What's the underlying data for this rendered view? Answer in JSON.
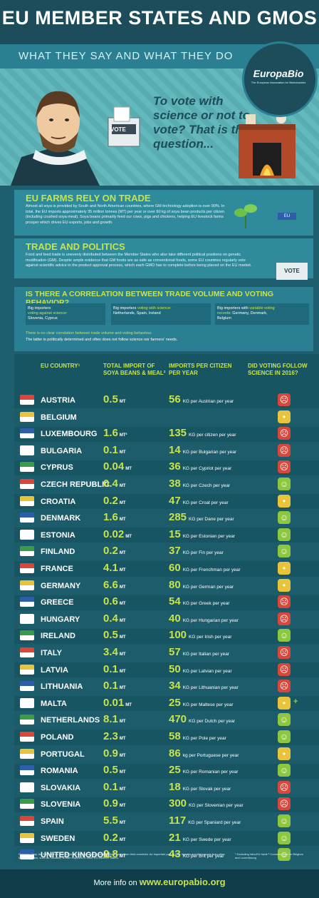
{
  "header": {
    "title": "EU MEMBER STATES AND GMOS",
    "subtitle": "WHAT THEY SAY AND WHAT THEY DO"
  },
  "logo": {
    "name": "EuropaBio",
    "tagline": "The European Association for Bioindustries"
  },
  "hero": {
    "quote": "To vote with science or not to vote? That is the question...",
    "vote_label": "VOTE"
  },
  "section_trade": {
    "heading": "EU FARMS RELY ON TRADE",
    "text": "Almost all soya is provided by South and North American countries, where GM technology adoption is over 90%. In total, the EU imports approximately 35 million tonnes (MT) per year or over 60 kg of soya bean products per citizen (including crushed soya meal). Soya beans primarily feed our cows, pigs and chickens, helping EU livestock farms prosper which drives EU exports, jobs and growth.",
    "sign": "EU"
  },
  "section_politics": {
    "heading": "TRADE AND POLITICS",
    "text": "Food and feed trade is unevenly distributed between the Member States who also take different political positions on genetic modification (GM). Despite ample evidence that GM foods are as safe as conventional foods, some EU countries regularly vote against scientific advice in the product approval process, which each GMO has to complete before being placed on the EU market.",
    "vote_label": "VOTE"
  },
  "section_correlation": {
    "heading": "IS THERE A CORRELATION BETWEEN TRADE VOLUME AND VOTING BEHAVIOR?",
    "box1_pre": "Big importers",
    "box1_hl": "voting against science:",
    "box1_countries": "Slovenia, Cyprus",
    "box2_pre": "Big importers",
    "box2_hl": "voting with science:",
    "box2_countries": "Netherlands, Spain, Ireland",
    "box3_pre": "Big importers with",
    "box3_hl": "variable voting records:",
    "box3_countries": "Germany, Denmark, Belgium",
    "conclusion1": "There is no clear correlation between trade volume and voting behaviour.",
    "conclusion2": "The latter is politically determined and often does not follow science nor farmers' needs."
  },
  "table": {
    "col_country": "EU COUNTRY¹",
    "col_import": "TOTAL IMPORT OF SOYA BEANS & MEAL²",
    "col_percap": "IMPORTS PER CITIZEN PER YEAR",
    "col_vote": "DID VOTING FOLLOW SCIENCE IN 2016?",
    "rows": [
      {
        "country": "AUSTRIA",
        "import": "0.5",
        "unit": "MT",
        "pc": "56",
        "pctxt": "KG per Austrian per year",
        "vote": "sad"
      },
      {
        "country": "BELGIUM",
        "import": "",
        "unit": "",
        "pc": "",
        "pctxt": "",
        "vote": "neutral"
      },
      {
        "country": "LUXEMBOURG",
        "import": "1.6",
        "unit": "MT³",
        "pc": "135",
        "pctxt": "KG per citizen per year",
        "vote": "sad"
      },
      {
        "country": "BULGARIA",
        "import": "0.1",
        "unit": "MT",
        "pc": "14",
        "pctxt": "KG per Bulgarian per year",
        "vote": "sad"
      },
      {
        "country": "CYPRUS",
        "import": "0.04",
        "unit": "MT",
        "pc": "36",
        "pctxt": "KG per Cypriot per year",
        "vote": "sad"
      },
      {
        "country": "CZECH REPUBLIC",
        "import": "0.4",
        "unit": "MT",
        "pc": "38",
        "pctxt": "KG per Czech per year",
        "vote": "happy"
      },
      {
        "country": "CROATIA",
        "import": "0.2",
        "unit": "MT",
        "pc": "47",
        "pctxt": "KG per Croat per year",
        "vote": "neutral"
      },
      {
        "country": "DENMARK",
        "import": "1.6",
        "unit": "MT",
        "pc": "285",
        "pctxt": "KG per Dane per year",
        "vote": "happy"
      },
      {
        "country": "ESTONIA",
        "import": "0.02",
        "unit": "MT",
        "pc": "15",
        "pctxt": "KG per Estonian per year",
        "vote": "happy"
      },
      {
        "country": "FINLAND",
        "import": "0.2",
        "unit": "MT",
        "pc": "37",
        "pctxt": "KG per Fin per year",
        "vote": "happy"
      },
      {
        "country": "FRANCE",
        "import": "4.1",
        "unit": "MT",
        "pc": "60",
        "pctxt": "KG per Frenchman per year",
        "vote": "neutral"
      },
      {
        "country": "GERMANY",
        "import": "6.6",
        "unit": "MT",
        "pc": "80",
        "pctxt": "KG per German per year",
        "vote": "neutral"
      },
      {
        "country": "GREECE",
        "import": "0.6",
        "unit": "MT",
        "pc": "54",
        "pctxt": "KG per Greek per year",
        "vote": "sad"
      },
      {
        "country": "HUNGARY",
        "import": "0.4",
        "unit": "MT",
        "pc": "40",
        "pctxt": "KG per Hungarian per year",
        "vote": "sad"
      },
      {
        "country": "IRELAND",
        "import": "0.5",
        "unit": "MT",
        "pc": "100",
        "pctxt": "KG per Irish per year",
        "vote": "happy"
      },
      {
        "country": "ITALY",
        "import": "3.4",
        "unit": "MT",
        "pc": "57",
        "pctxt": "KG per Italian per year",
        "vote": "sad"
      },
      {
        "country": "LATVIA",
        "import": "0.1",
        "unit": "MT",
        "pc": "50",
        "pctxt": "KG per Latvian per year",
        "vote": "sad"
      },
      {
        "country": "LITHUANIA",
        "import": "0.1",
        "unit": "MT",
        "pc": "34",
        "pctxt": "KG per Lithuanian per year",
        "vote": "sad"
      },
      {
        "country": "MALTA",
        "import": "0.01",
        "unit": "MT",
        "pc": "25",
        "pctxt": "KG per Maltese per year",
        "vote": "neutral",
        "plus": "+"
      },
      {
        "country": "NETHERLANDS",
        "import": "8.1",
        "unit": "MT",
        "pc": "470",
        "pctxt": "KG per Dutch per year",
        "vote": "happy"
      },
      {
        "country": "POLAND",
        "import": "2.3",
        "unit": "MT",
        "pc": "58",
        "pctxt": "KG per Pole per year",
        "vote": "happy"
      },
      {
        "country": "PORTUGAL",
        "import": "0.9",
        "unit": "MT",
        "pc": "86",
        "pctxt": "kg per Portuguese per year",
        "vote": "neutral"
      },
      {
        "country": "ROMANIA",
        "import": "0.5",
        "unit": "MT",
        "pc": "25",
        "pctxt": "KG per Romanian per year",
        "vote": "happy"
      },
      {
        "country": "SLOVAKIA",
        "import": "0.1",
        "unit": "MT",
        "pc": "18",
        "pctxt": "KG per Slovak per year",
        "vote": "sad"
      },
      {
        "country": "SLOVENIA",
        "import": "0.9",
        "unit": "MT",
        "pc": "300",
        "pctxt": "KG per Slovenian per year",
        "vote": "sad"
      },
      {
        "country": "SPAIN",
        "import": "5.5",
        "unit": "MT",
        "pc": "117",
        "pctxt": "KG per Spaniard per year",
        "vote": "happy"
      },
      {
        "country": "SWEDEN",
        "import": "0.2",
        "unit": "MT",
        "pc": "21",
        "pctxt": "KG per Swede per year",
        "vote": "happy"
      },
      {
        "country": "UNITED KINGDOM",
        "import": "2.8",
        "unit": "MT",
        "pc": "43",
        "pctxt": "KG per Brit per year",
        "vote": "happy"
      }
    ]
  },
  "footnotes": {
    "left": "Germany, Italy, the Netherlands and Spain are the main entry points of GM imports from third countries. An important part of their imports and the imports from other Member States, such as Slovakia, is later exported to other EU Member States.",
    "right": "¹ Excluding intra-EU trade ² Common data for Belgium and Luxembourg"
  },
  "footer": {
    "prefix": "More info on",
    "url": "www.europabio.org"
  },
  "colors": {
    "sad": "#d9473a",
    "neutral": "#e9c43a",
    "happy": "#8dc63f",
    "accent": "#c9e34a"
  }
}
